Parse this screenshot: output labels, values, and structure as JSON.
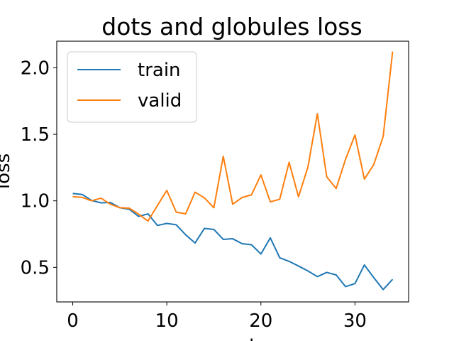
{
  "chart_data": {
    "type": "line",
    "title": "dots and globules loss",
    "xlabel": "epoch",
    "ylabel": "loss",
    "xlim": [
      -1.7,
      35.7
    ],
    "ylim": [
      0.24,
      2.2
    ],
    "x_ticks": [
      0,
      10,
      20,
      30
    ],
    "y_ticks": [
      0.5,
      1.0,
      1.5,
      2.0
    ],
    "x_tick_labels": [
      "0",
      "10",
      "20",
      "30"
    ],
    "y_tick_labels": [
      "0.5",
      "1.0",
      "1.5",
      "2.0"
    ],
    "grid": false,
    "legend_position": "top-left",
    "x": [
      0,
      1,
      2,
      3,
      4,
      5,
      6,
      7,
      8,
      9,
      10,
      11,
      12,
      13,
      14,
      15,
      16,
      17,
      18,
      19,
      20,
      21,
      22,
      23,
      24,
      25,
      26,
      27,
      28,
      29,
      30,
      31,
      32,
      33,
      34
    ],
    "series": [
      {
        "name": "train",
        "color": "#1f77b4",
        "values": [
          1.055,
          1.048,
          1.003,
          0.985,
          0.988,
          0.948,
          0.937,
          0.883,
          0.902,
          0.815,
          0.83,
          0.82,
          0.745,
          0.683,
          0.793,
          0.785,
          0.71,
          0.715,
          0.678,
          0.67,
          0.6,
          0.722,
          0.572,
          0.545,
          0.51,
          0.473,
          0.43,
          0.462,
          0.443,
          0.355,
          0.378,
          0.518,
          0.422,
          0.333,
          0.41
        ]
      },
      {
        "name": "valid",
        "color": "#ff7f0e",
        "values": [
          1.032,
          1.026,
          1.0,
          1.02,
          0.975,
          0.948,
          0.945,
          0.9,
          0.848,
          0.965,
          1.078,
          0.915,
          0.902,
          1.065,
          1.022,
          0.948,
          1.335,
          0.975,
          1.025,
          1.045,
          1.195,
          0.992,
          1.012,
          1.29,
          1.03,
          1.255,
          1.655,
          1.18,
          1.093,
          1.313,
          1.495,
          1.163,
          1.273,
          1.485,
          2.122
        ]
      }
    ]
  }
}
